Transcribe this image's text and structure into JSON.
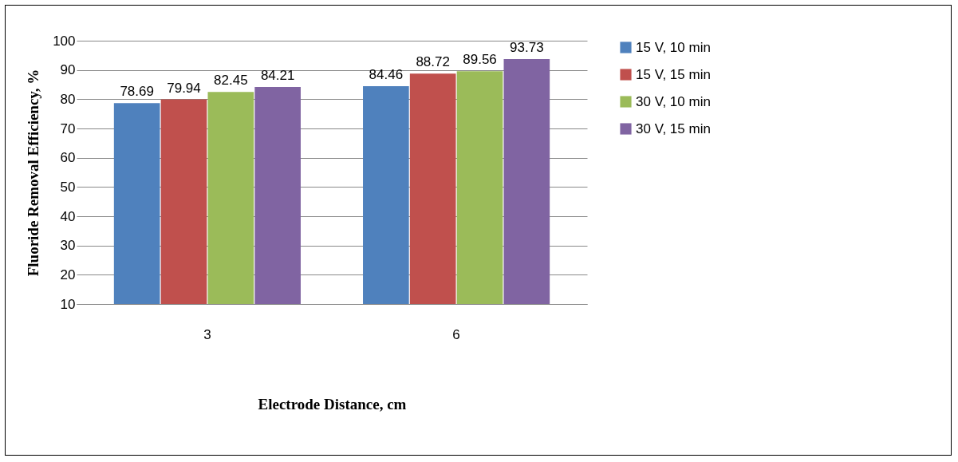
{
  "chart_data": {
    "type": "bar",
    "xlabel": "Electrode Distance, cm",
    "ylabel": "Fluoride Removal Efficiency, %",
    "categories": [
      "3",
      "6"
    ],
    "series": [
      {
        "name": "15 V, 10 min",
        "color": "#4f81bd",
        "values": [
          78.69,
          84.46
        ]
      },
      {
        "name": "15 V, 15 min",
        "color": "#c0504d",
        "values": [
          79.94,
          88.72
        ]
      },
      {
        "name": "30 V, 10 min",
        "color": "#9bbb59",
        "values": [
          82.45,
          89.56
        ]
      },
      {
        "name": "30 V, 15 min",
        "color": "#8064a2",
        "values": [
          84.21,
          93.73
        ]
      }
    ],
    "ylim": [
      10,
      100
    ],
    "yticks": [
      10,
      20,
      30,
      40,
      50,
      60,
      70,
      80,
      90,
      100
    ],
    "grid": "y",
    "legend": "right",
    "data_labels": true
  }
}
